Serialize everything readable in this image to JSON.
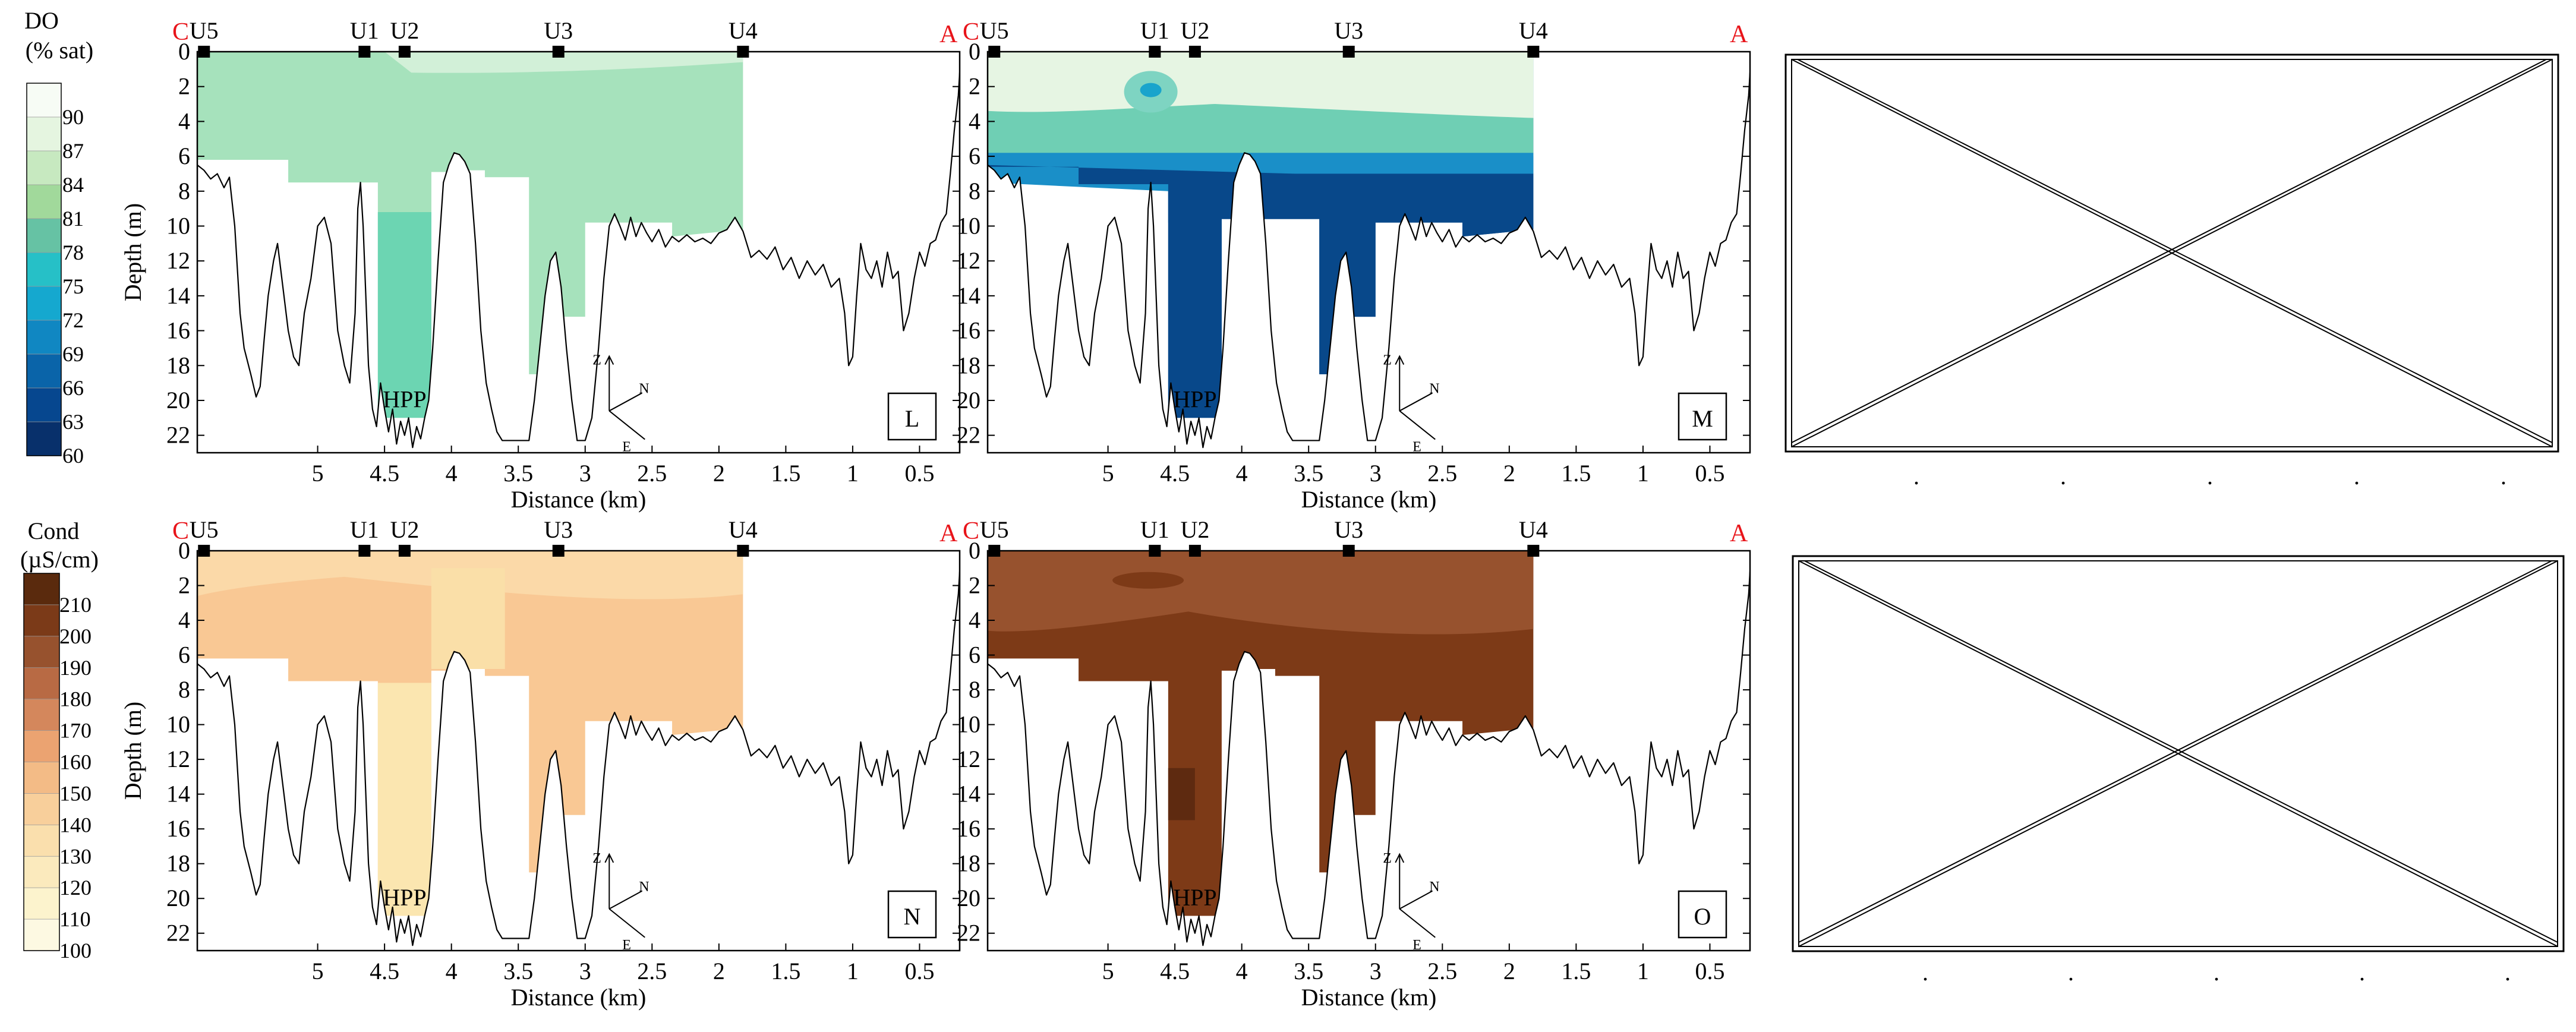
{
  "colorbars": [
    {
      "title": [
        "DO",
        "(% sat)"
      ],
      "levels": [
        "90",
        "87",
        "84",
        "81",
        "78",
        "75",
        "72",
        "69",
        "66",
        "63",
        "60"
      ],
      "colors": [
        "#f7fcf5",
        "#e5f5e0",
        "#c7e9c0",
        "#a1d99b",
        "#66c2a4",
        "#26c0c7",
        "#15a8cf",
        "#1087c2",
        "#0a64a9",
        "#06478f",
        "#08306b"
      ]
    },
    {
      "title": [
        "Cond",
        "(µS/cm)"
      ],
      "levels": [
        "210",
        "200",
        "190",
        "180",
        "170",
        "160",
        "150",
        "140",
        "130",
        "120",
        "110",
        "100"
      ],
      "colors": [
        "#5a2a0d",
        "#7b3a18",
        "#97522e",
        "#b86a44",
        "#d4875c",
        "#eba371",
        "#f3bb86",
        "#f8cf9b",
        "#fadfad",
        "#fbeabd",
        "#fcf3cd",
        "#fdf9e2"
      ]
    }
  ],
  "chart_data": [
    {
      "type": "heatmap",
      "panel_label": "L",
      "variable": "DO (% sat)",
      "xlabel": "Distance (km)",
      "ylabel": "Depth (m)",
      "xlim": [
        5.9,
        0.2
      ],
      "ylim": [
        0,
        23
      ],
      "x_ticks": [
        "5",
        "4.5",
        "4",
        "3.5",
        "3",
        "2.5",
        "2",
        "1.5",
        "1",
        "0.5"
      ],
      "y_ticks": [
        "0",
        "2",
        "4",
        "6",
        "8",
        "10",
        "12",
        "14",
        "16",
        "18",
        "20",
        "22"
      ],
      "stations": [
        {
          "name": "U5",
          "x": 5.85
        },
        {
          "name": "U1",
          "x": 4.65
        },
        {
          "name": "U2",
          "x": 4.35
        },
        {
          "name": "U3",
          "x": 3.2
        },
        {
          "name": "U4",
          "x": 1.82
        }
      ],
      "ends": {
        "left": "C",
        "right": "A"
      },
      "annotation": "HPP",
      "compass": [
        "Z",
        "N",
        "E"
      ],
      "field": {
        "base_color": "#a6e2bc",
        "surface_color": "#d2f0d8",
        "deep_pool_color": "#6cd5b2"
      }
    },
    {
      "type": "heatmap",
      "panel_label": "M",
      "variable": "DO (% sat)",
      "xlabel": "Distance (km)",
      "ylabel": "",
      "xlim": [
        5.9,
        0.2
      ],
      "ylim": [
        0,
        23
      ],
      "x_ticks": [
        "5",
        "4.5",
        "4",
        "3.5",
        "3",
        "2.5",
        "2",
        "1.5",
        "1",
        "0.5"
      ],
      "y_ticks": [
        "0",
        "2",
        "4",
        "6",
        "8",
        "10",
        "12",
        "14",
        "16",
        "18",
        "20",
        "22"
      ],
      "stations": [
        {
          "name": "U5",
          "x": 5.85
        },
        {
          "name": "U1",
          "x": 4.65
        },
        {
          "name": "U2",
          "x": 4.35
        },
        {
          "name": "U3",
          "x": 3.2
        },
        {
          "name": "U4",
          "x": 1.82
        }
      ],
      "ends": {
        "left": "C",
        "right": "A"
      },
      "annotation": "HPP",
      "compass": [
        "Z",
        "N",
        "E"
      ],
      "field": {
        "base_color": "#08488a",
        "surface_color": "#e6f5e3",
        "mid_color": "#6fcfb4",
        "transition_color": "#1a8fc8"
      }
    },
    {
      "type": "heatmap",
      "panel_label": "N",
      "variable": "Cond (µS/cm)",
      "xlabel": "Distance (km)",
      "ylabel": "Depth (m)",
      "xlim": [
        5.9,
        0.2
      ],
      "ylim": [
        0,
        23
      ],
      "x_ticks": [
        "5",
        "4.5",
        "4",
        "3.5",
        "3",
        "2.5",
        "2",
        "1.5",
        "1",
        "0.5"
      ],
      "y_ticks": [
        "0",
        "2",
        "4",
        "6",
        "8",
        "10",
        "12",
        "14",
        "16",
        "18",
        "20",
        "22"
      ],
      "stations": [
        {
          "name": "U5",
          "x": 5.85
        },
        {
          "name": "U1",
          "x": 4.65
        },
        {
          "name": "U2",
          "x": 4.35
        },
        {
          "name": "U3",
          "x": 3.2
        },
        {
          "name": "U4",
          "x": 1.82
        }
      ],
      "ends": {
        "left": "C",
        "right": "A"
      },
      "annotation": "HPP",
      "compass": [
        "Z",
        "N",
        "E"
      ],
      "field": {
        "base_color": "#f9c894",
        "surface_color": "#fbd9a8",
        "deep_pool_color": "#fbe6b0",
        "mid_color": "#fadfa8"
      }
    },
    {
      "type": "heatmap",
      "panel_label": "O",
      "variable": "Cond (µS/cm)",
      "xlabel": "Distance (km)",
      "ylabel": "",
      "xlim": [
        5.9,
        0.2
      ],
      "ylim": [
        0,
        23
      ],
      "x_ticks": [
        "5",
        "4.5",
        "4",
        "3.5",
        "3",
        "2.5",
        "2",
        "1.5",
        "1",
        "0.5"
      ],
      "y_ticks": [
        "0",
        "2",
        "4",
        "6",
        "8",
        "10",
        "12",
        "14",
        "16",
        "18",
        "20",
        "22"
      ],
      "stations": [
        {
          "name": "U5",
          "x": 5.85
        },
        {
          "name": "U1",
          "x": 4.65
        },
        {
          "name": "U2",
          "x": 4.35
        },
        {
          "name": "U3",
          "x": 3.2
        },
        {
          "name": "U4",
          "x": 1.82
        }
      ],
      "ends": {
        "left": "C",
        "right": "A"
      },
      "annotation": "HPP",
      "compass": [
        "Z",
        "N",
        "E"
      ],
      "field": {
        "base_color": "#7d3a17",
        "surface_color": "#97522e",
        "dark_color": "#5e2a10"
      }
    }
  ],
  "placeholders": [
    {
      "ticks": [
        ".",
        ".",
        ".",
        ".",
        "."
      ]
    },
    {
      "ticks": [
        ".",
        ".",
        ".",
        ".",
        "."
      ]
    }
  ]
}
